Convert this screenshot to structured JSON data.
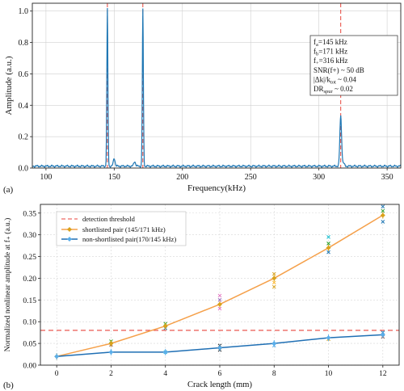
{
  "chart_data": [
    {
      "panel_label": "(a)",
      "type": "line",
      "xlabel": "Frequency(kHz)",
      "ylabel": "Amplitude (a.u.)",
      "xlim": [
        90,
        360
      ],
      "ylim": [
        0,
        1.05
      ],
      "xticks": [
        100,
        150,
        200,
        250,
        300,
        350
      ],
      "yticks": [
        0.0,
        0.2,
        0.4,
        0.6,
        0.8,
        1.0
      ],
      "grid": true,
      "spectrum_color": "#1f77b4",
      "marker_color": "#e8453c",
      "baseline": 0.012,
      "peaks": [
        {
          "x": 145,
          "y": 1.0
        },
        {
          "x": 171,
          "y": 1.0
        },
        {
          "x": 316,
          "y": 0.32
        },
        {
          "x": 150,
          "y": 0.05
        },
        {
          "x": 165,
          "y": 0.03
        },
        {
          "x": 318,
          "y": 0.02
        }
      ],
      "markers": [
        145,
        171,
        316
      ],
      "annotation": {
        "placement": "top-right",
        "lines": [
          {
            "main": "f",
            "sub": "a",
            "rest": "=145 kHz"
          },
          {
            "main": "f",
            "sub": "b",
            "rest": "=171 kHz"
          },
          {
            "main": "f",
            "sub": "+",
            "rest": "=316 kHz"
          },
          {
            "main": "SNR(f+)",
            "sub": "",
            "rest": " ~ 50 dB"
          },
          {
            "main": "|Δk|/k",
            "sub": "tot",
            "rest": " ~ 0.04"
          },
          {
            "main": "DR",
            "sub": "spur",
            "rest": " ~ 0.02"
          }
        ]
      }
    },
    {
      "panel_label": "(b)",
      "type": "line",
      "xlabel": "Crack length (mm)",
      "ylabel": "Normalized nonlinear amplitude at f₊ (a.u.)",
      "xlim": [
        -0.6,
        12.6
      ],
      "ylim": [
        0,
        0.37
      ],
      "xticks": [
        0,
        2,
        4,
        6,
        8,
        10,
        12
      ],
      "yticks": [
        0.0,
        0.05,
        0.1,
        0.15,
        0.2,
        0.25,
        0.3,
        0.35
      ],
      "ytick_labels": [
        "0.00",
        "0.05",
        "0.10",
        "0.15",
        "0.20",
        "0.25",
        "0.30",
        "0.35"
      ],
      "grid": true,
      "legend_position": "upper-left",
      "threshold": {
        "name": "detection threshold",
        "y": 0.08,
        "color": "#e8453c"
      },
      "series": [
        {
          "name": "shortlisted pair (145/171 kHz)",
          "color": "#f5a04a",
          "marker_color": "#d9a21b",
          "x": [
            0,
            2,
            4,
            6,
            8,
            10,
            12
          ],
          "y": [
            0.02,
            0.05,
            0.09,
            0.14,
            0.2,
            0.27,
            0.345
          ]
        },
        {
          "name": "non-shortlisted pair(170/145 kHz)",
          "color": "#1f6fb4",
          "marker_color": "#5aaeea",
          "x": [
            0,
            2,
            4,
            6,
            8,
            10,
            12
          ],
          "y": [
            0.02,
            0.03,
            0.03,
            0.04,
            0.05,
            0.063,
            0.07
          ]
        }
      ],
      "scatter": [
        {
          "x": 2,
          "y": 0.047,
          "color": "#8c564b"
        },
        {
          "x": 2,
          "y": 0.055,
          "color": "#2ca02c"
        },
        {
          "x": 4,
          "y": 0.095,
          "color": "#2ca02c"
        },
        {
          "x": 4,
          "y": 0.085,
          "color": "#1f77b4"
        },
        {
          "x": 4,
          "y": 0.03,
          "color": "#17becf"
        },
        {
          "x": 6,
          "y": 0.16,
          "color": "#e377c2"
        },
        {
          "x": 6,
          "y": 0.15,
          "color": "#9467bd"
        },
        {
          "x": 6,
          "y": 0.13,
          "color": "#e377c2"
        },
        {
          "x": 6,
          "y": 0.045,
          "color": "#222222"
        },
        {
          "x": 6,
          "y": 0.035,
          "color": "#222222"
        },
        {
          "x": 8,
          "y": 0.21,
          "color": "#d9a21b"
        },
        {
          "x": 8,
          "y": 0.19,
          "color": "#ffbb33"
        },
        {
          "x": 8,
          "y": 0.18,
          "color": "#d9a21b"
        },
        {
          "x": 8,
          "y": 0.045,
          "color": "#5aaeea"
        },
        {
          "x": 10,
          "y": 0.295,
          "color": "#17becf"
        },
        {
          "x": 10,
          "y": 0.28,
          "color": "#2ca02c"
        },
        {
          "x": 10,
          "y": 0.26,
          "color": "#1f77b4"
        },
        {
          "x": 10,
          "y": 0.06,
          "color": "#d9a21b"
        },
        {
          "x": 12,
          "y": 0.365,
          "color": "#1f77b4"
        },
        {
          "x": 12,
          "y": 0.355,
          "color": "#2ca02c"
        },
        {
          "x": 12,
          "y": 0.33,
          "color": "#1f77b4"
        },
        {
          "x": 12,
          "y": 0.075,
          "color": "#1f77b4"
        },
        {
          "x": 12,
          "y": 0.065,
          "color": "#8c564b"
        }
      ]
    }
  ]
}
